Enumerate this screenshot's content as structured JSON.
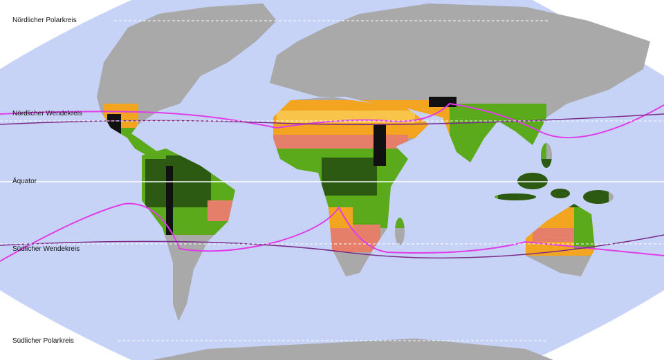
{
  "labels": {
    "arctic_circle": "Nördlicher Polarkreis",
    "tropic_cancer": "Nördlicher Wendekreis",
    "equator": "Äquator",
    "tropic_capricorn": "Südlicher Wendekreis",
    "antarctic_circle": "Südlicher Polarkreis"
  },
  "colors": {
    "ocean": "#c6d3f7",
    "land": "#a9a9a9",
    "rainforest": "#2d5a12",
    "savanna_wet": "#5aaa1c",
    "savanna_dry": "#e57f6a",
    "semi_arid": "#f3a51f",
    "arid": "#f8c44a",
    "mountain": "#111111",
    "itcz_line": "#e03ce8",
    "range_line": "#7a2a8a"
  }
}
